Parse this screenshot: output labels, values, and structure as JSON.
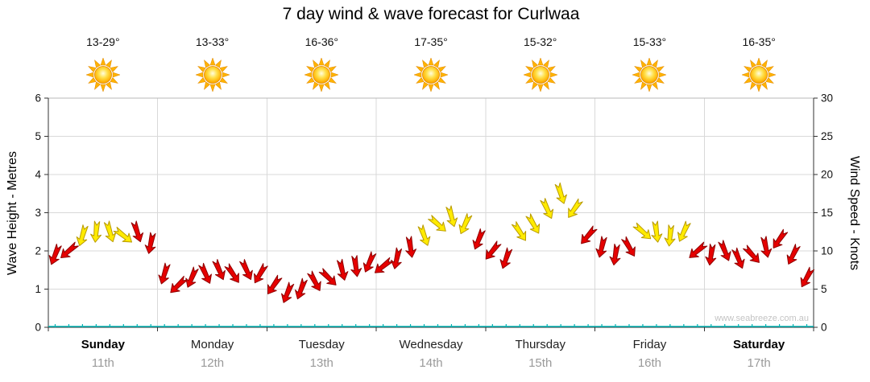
{
  "title": "7 day wind & wave forecast for Curlwaa",
  "watermark": "www.seabreeze.com.au",
  "days": [
    {
      "name": "Sunday",
      "date": "11th",
      "temp": "13-29°",
      "weekend": true
    },
    {
      "name": "Monday",
      "date": "12th",
      "temp": "13-33°",
      "weekend": false
    },
    {
      "name": "Tuesday",
      "date": "13th",
      "temp": "16-36°",
      "weekend": false
    },
    {
      "name": "Wednesday",
      "date": "14th",
      "temp": "17-35°",
      "weekend": false
    },
    {
      "name": "Thursday",
      "date": "15th",
      "temp": "15-32°",
      "weekend": false
    },
    {
      "name": "Friday",
      "date": "16th",
      "temp": "15-33°",
      "weekend": false
    },
    {
      "name": "Saturday",
      "date": "17th",
      "temp": "16-35°",
      "weekend": true
    }
  ],
  "chart_data": {
    "type": "wind-arrow-timeseries",
    "title": "7 day wind & wave forecast for Curlwaa",
    "categories": [
      "Sunday 11th",
      "Monday 12th",
      "Tuesday 13th",
      "Wednesday 14th",
      "Thursday 15th",
      "Friday 16th",
      "Saturday 17th"
    ],
    "ylabel_left": "Wave Height - Metres",
    "ylabel_right": "Wind Speed - Knots",
    "ylim_left": [
      0,
      6
    ],
    "ylim_right": [
      0,
      30
    ],
    "left_ticks": [
      0,
      1,
      2,
      3,
      4,
      5,
      6
    ],
    "right_ticks": [
      0,
      5,
      10,
      15,
      20,
      25,
      30
    ],
    "points_per_day": 8,
    "wind_knots": [
      9.5,
      10.0,
      12.0,
      12.5,
      12.5,
      12.0,
      12.5,
      11.0,
      7.0,
      5.5,
      6.5,
      7.0,
      7.5,
      7.0,
      7.5,
      7.0,
      5.5,
      4.5,
      5.0,
      6.0,
      6.5,
      7.5,
      8.0,
      8.5,
      8.0,
      9.0,
      10.5,
      12.0,
      13.5,
      14.5,
      13.5,
      11.5,
      10.0,
      9.0,
      12.5,
      13.5,
      15.5,
      17.5,
      15.5,
      12.0,
      10.5,
      9.5,
      10.5,
      12.5,
      12.5,
      12.0,
      12.5,
      10.0,
      9.5,
      10.0,
      9.0,
      9.5,
      10.5,
      11.5,
      9.5,
      6.5
    ],
    "arrow_colors": [
      "red",
      "red",
      "yellow",
      "yellow",
      "yellow",
      "yellow",
      "red",
      "red",
      "red",
      "red",
      "red",
      "red",
      "red",
      "red",
      "red",
      "red",
      "red",
      "red",
      "red",
      "red",
      "red",
      "red",
      "red",
      "red",
      "red",
      "red",
      "red",
      "yellow",
      "yellow",
      "yellow",
      "yellow",
      "red",
      "red",
      "red",
      "yellow",
      "yellow",
      "yellow",
      "yellow",
      "yellow",
      "red",
      "red",
      "red",
      "red",
      "yellow",
      "yellow",
      "yellow",
      "yellow",
      "red",
      "red",
      "red",
      "red",
      "red",
      "red",
      "red",
      "red",
      "red"
    ],
    "color_hex": {
      "red": "#e60000",
      "yellow": "#ffeb00"
    },
    "wave_height_metres": {
      "constant": 0,
      "color": "#00b2b2"
    },
    "grid": true,
    "legend": false
  }
}
